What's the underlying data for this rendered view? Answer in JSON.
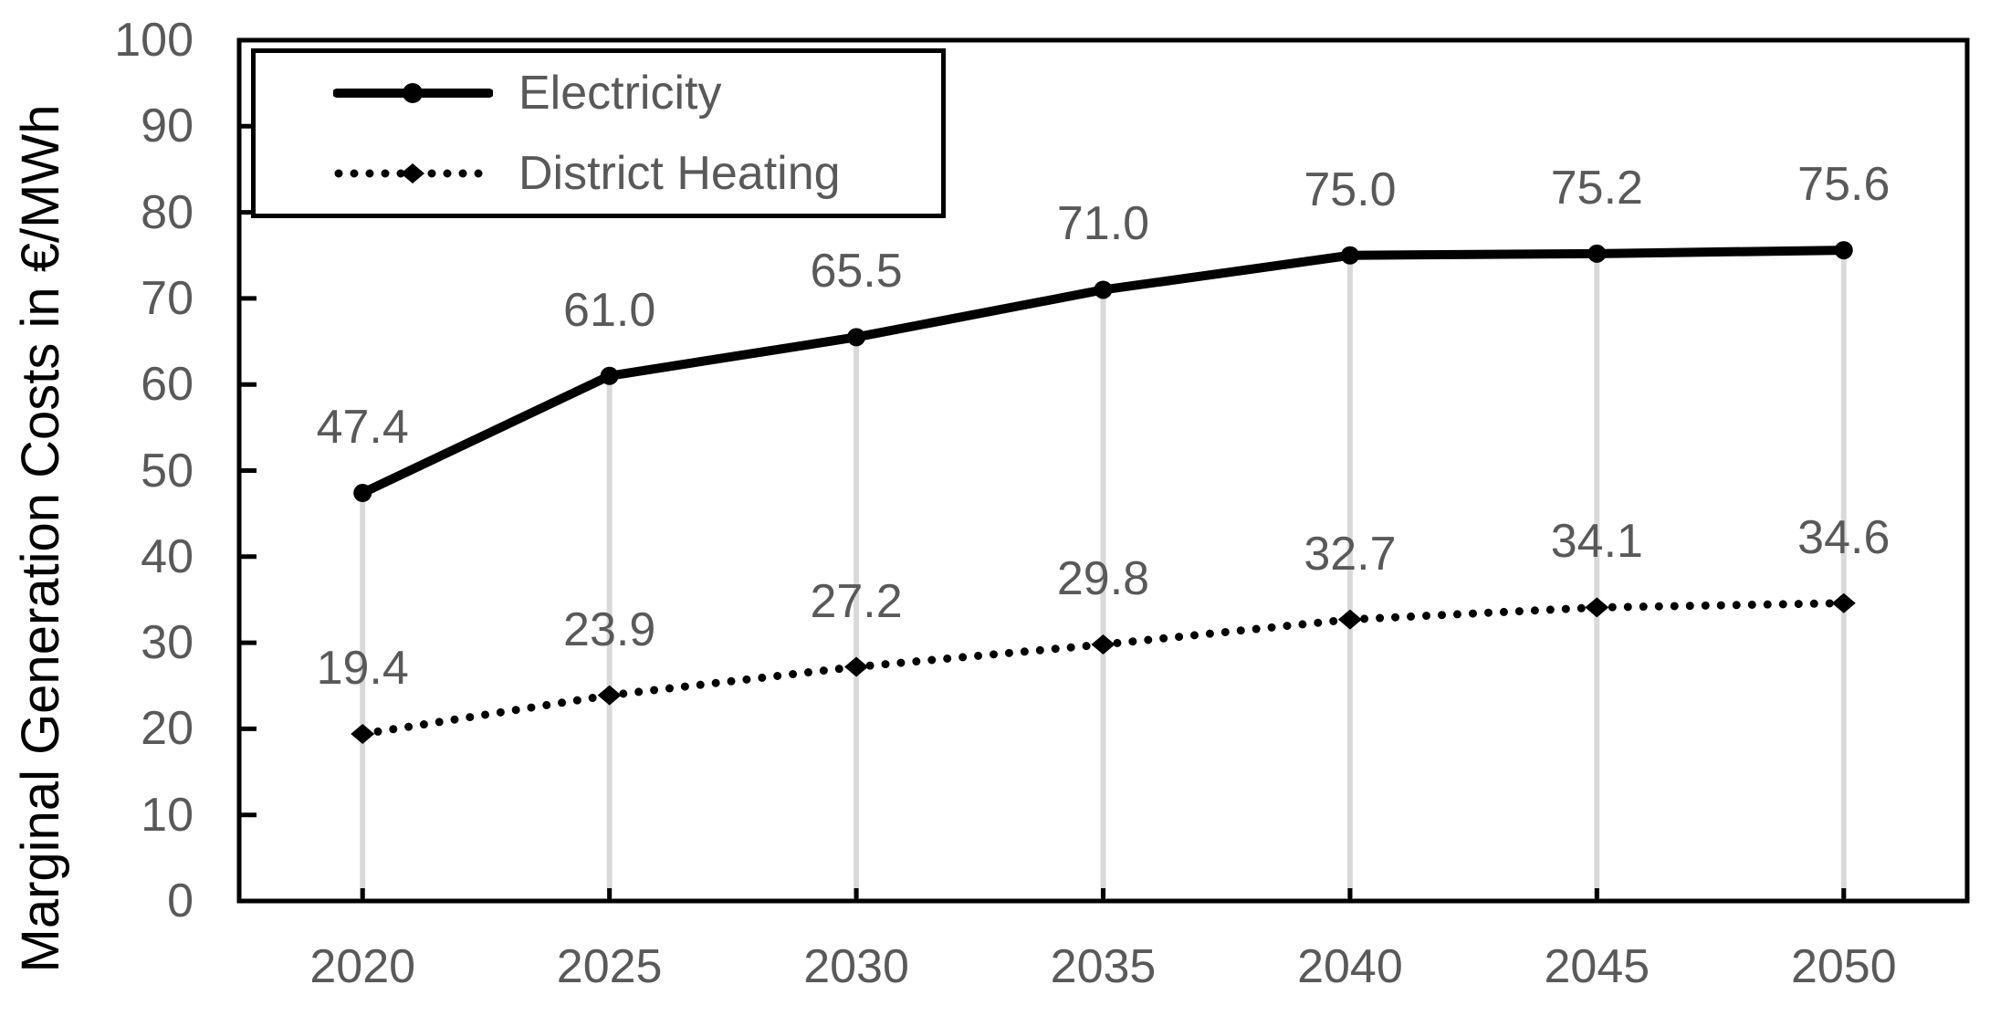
{
  "chart_data": {
    "type": "line",
    "title": "",
    "xlabel": "",
    "ylabel": "Marginal Generation Costs in €/MWh",
    "categories": [
      "2020",
      "2025",
      "2030",
      "2035",
      "2040",
      "2045",
      "2050"
    ],
    "y_ticks": [
      "0",
      "10",
      "20",
      "30",
      "40",
      "50",
      "60",
      "70",
      "80",
      "90",
      "100"
    ],
    "ylim": [
      0,
      100
    ],
    "grid": "none",
    "drop_lines": "vertical light-gray line at each category from top series point to x-axis",
    "legend_position": "top-left inside plot area, boxed",
    "series": [
      {
        "name": "Electricity",
        "line_style": "solid",
        "marker": "circle",
        "values": [
          47.4,
          61.0,
          65.5,
          71.0,
          75.0,
          75.2,
          75.6
        ],
        "labels": [
          "47.4",
          "61.0",
          "65.5",
          "71.0",
          "75.0",
          "75.2",
          "75.6"
        ]
      },
      {
        "name": "District Heating",
        "line_style": "dotted",
        "marker": "diamond",
        "values": [
          19.4,
          23.9,
          27.2,
          29.8,
          32.7,
          34.1,
          34.6
        ],
        "labels": [
          "19.4",
          "23.9",
          "27.2",
          "29.8",
          "32.7",
          "34.1",
          "34.6"
        ]
      }
    ]
  },
  "colors": {
    "series_line": "#000000",
    "marker_fill": "#000000",
    "frame": "#000000",
    "tick_mark": "#000000",
    "axis_title_text": "#000000",
    "tick_label_text": "#595959",
    "data_label_text": "#595959",
    "legend_text": "#595959",
    "legend_border": "#000000",
    "drop_line": "#d9d9d9",
    "background": "#ffffff"
  }
}
